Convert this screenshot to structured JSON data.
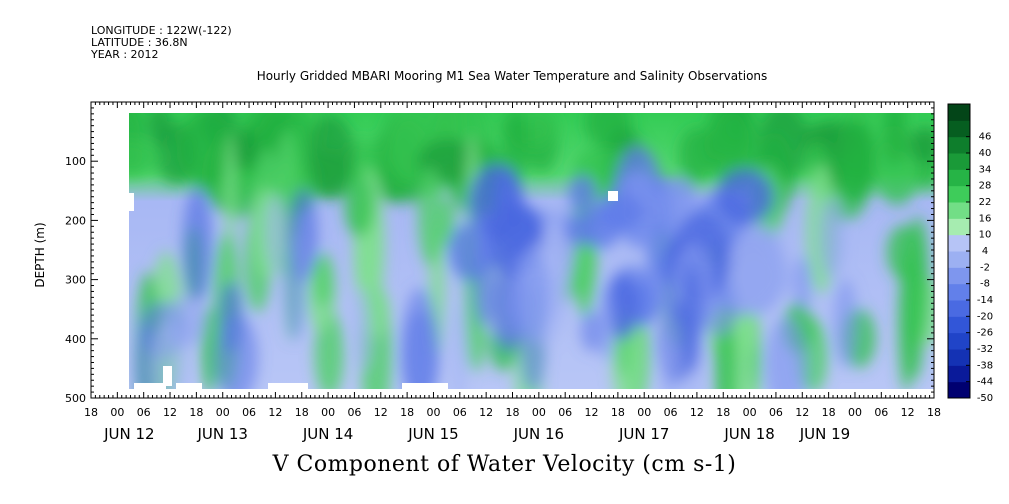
{
  "header": {
    "longitude": "LONGITUDE : 122W(-122)",
    "latitude": "LATITUDE : 36.8N",
    "year": "YEAR : 2012"
  },
  "chart_data": {
    "type": "heatmap",
    "title": "Hourly Gridded MBARI Mooring M1 Sea Water Temperature and Salinity Observations",
    "xlabel": "V Component of Water Velocity (cm s-1)",
    "ylabel": "DEPTH (m)",
    "y_range": [
      0,
      500
    ],
    "y_inverted": true,
    "y_ticks": [
      100,
      200,
      300,
      400,
      500
    ],
    "x_range": [
      "JUN 11 18:00",
      "JUN 19 18:00"
    ],
    "x_hour_ticks": [
      "18",
      "00",
      "06",
      "12",
      "18",
      "00",
      "06",
      "12",
      "18",
      "00",
      "06",
      "12",
      "18",
      "00",
      "06",
      "12",
      "18",
      "00",
      "06",
      "12",
      "18",
      "00",
      "06",
      "12",
      "18",
      "00",
      "06",
      "12",
      "18",
      "00",
      "06",
      "12",
      "18"
    ],
    "x_date_labels": [
      "JUN 12",
      "JUN 13",
      "JUN 14",
      "JUN 15",
      "JUN 16",
      "JUN 17",
      "JUN 18",
      "JUN 19"
    ],
    "colorbar": {
      "levels": [
        -50,
        -44,
        -38,
        -32,
        -26,
        -20,
        -14,
        -8,
        -2,
        4,
        10,
        16,
        22,
        28,
        34,
        40,
        46
      ],
      "labels": [
        "46",
        "40",
        "34",
        "28",
        "22",
        "16",
        "10",
        "4",
        "-2",
        "-8",
        "-14",
        "-20",
        "-26",
        "-32",
        "-38",
        "-44",
        "-50"
      ]
    },
    "field_description": {
      "upper_layer_0_150m_jun12_15": "positive (green), 10 to 34",
      "mid_depth_jun16_17": "negative (blue), -8 to -26",
      "background": "near zero, -8 to 10"
    }
  }
}
